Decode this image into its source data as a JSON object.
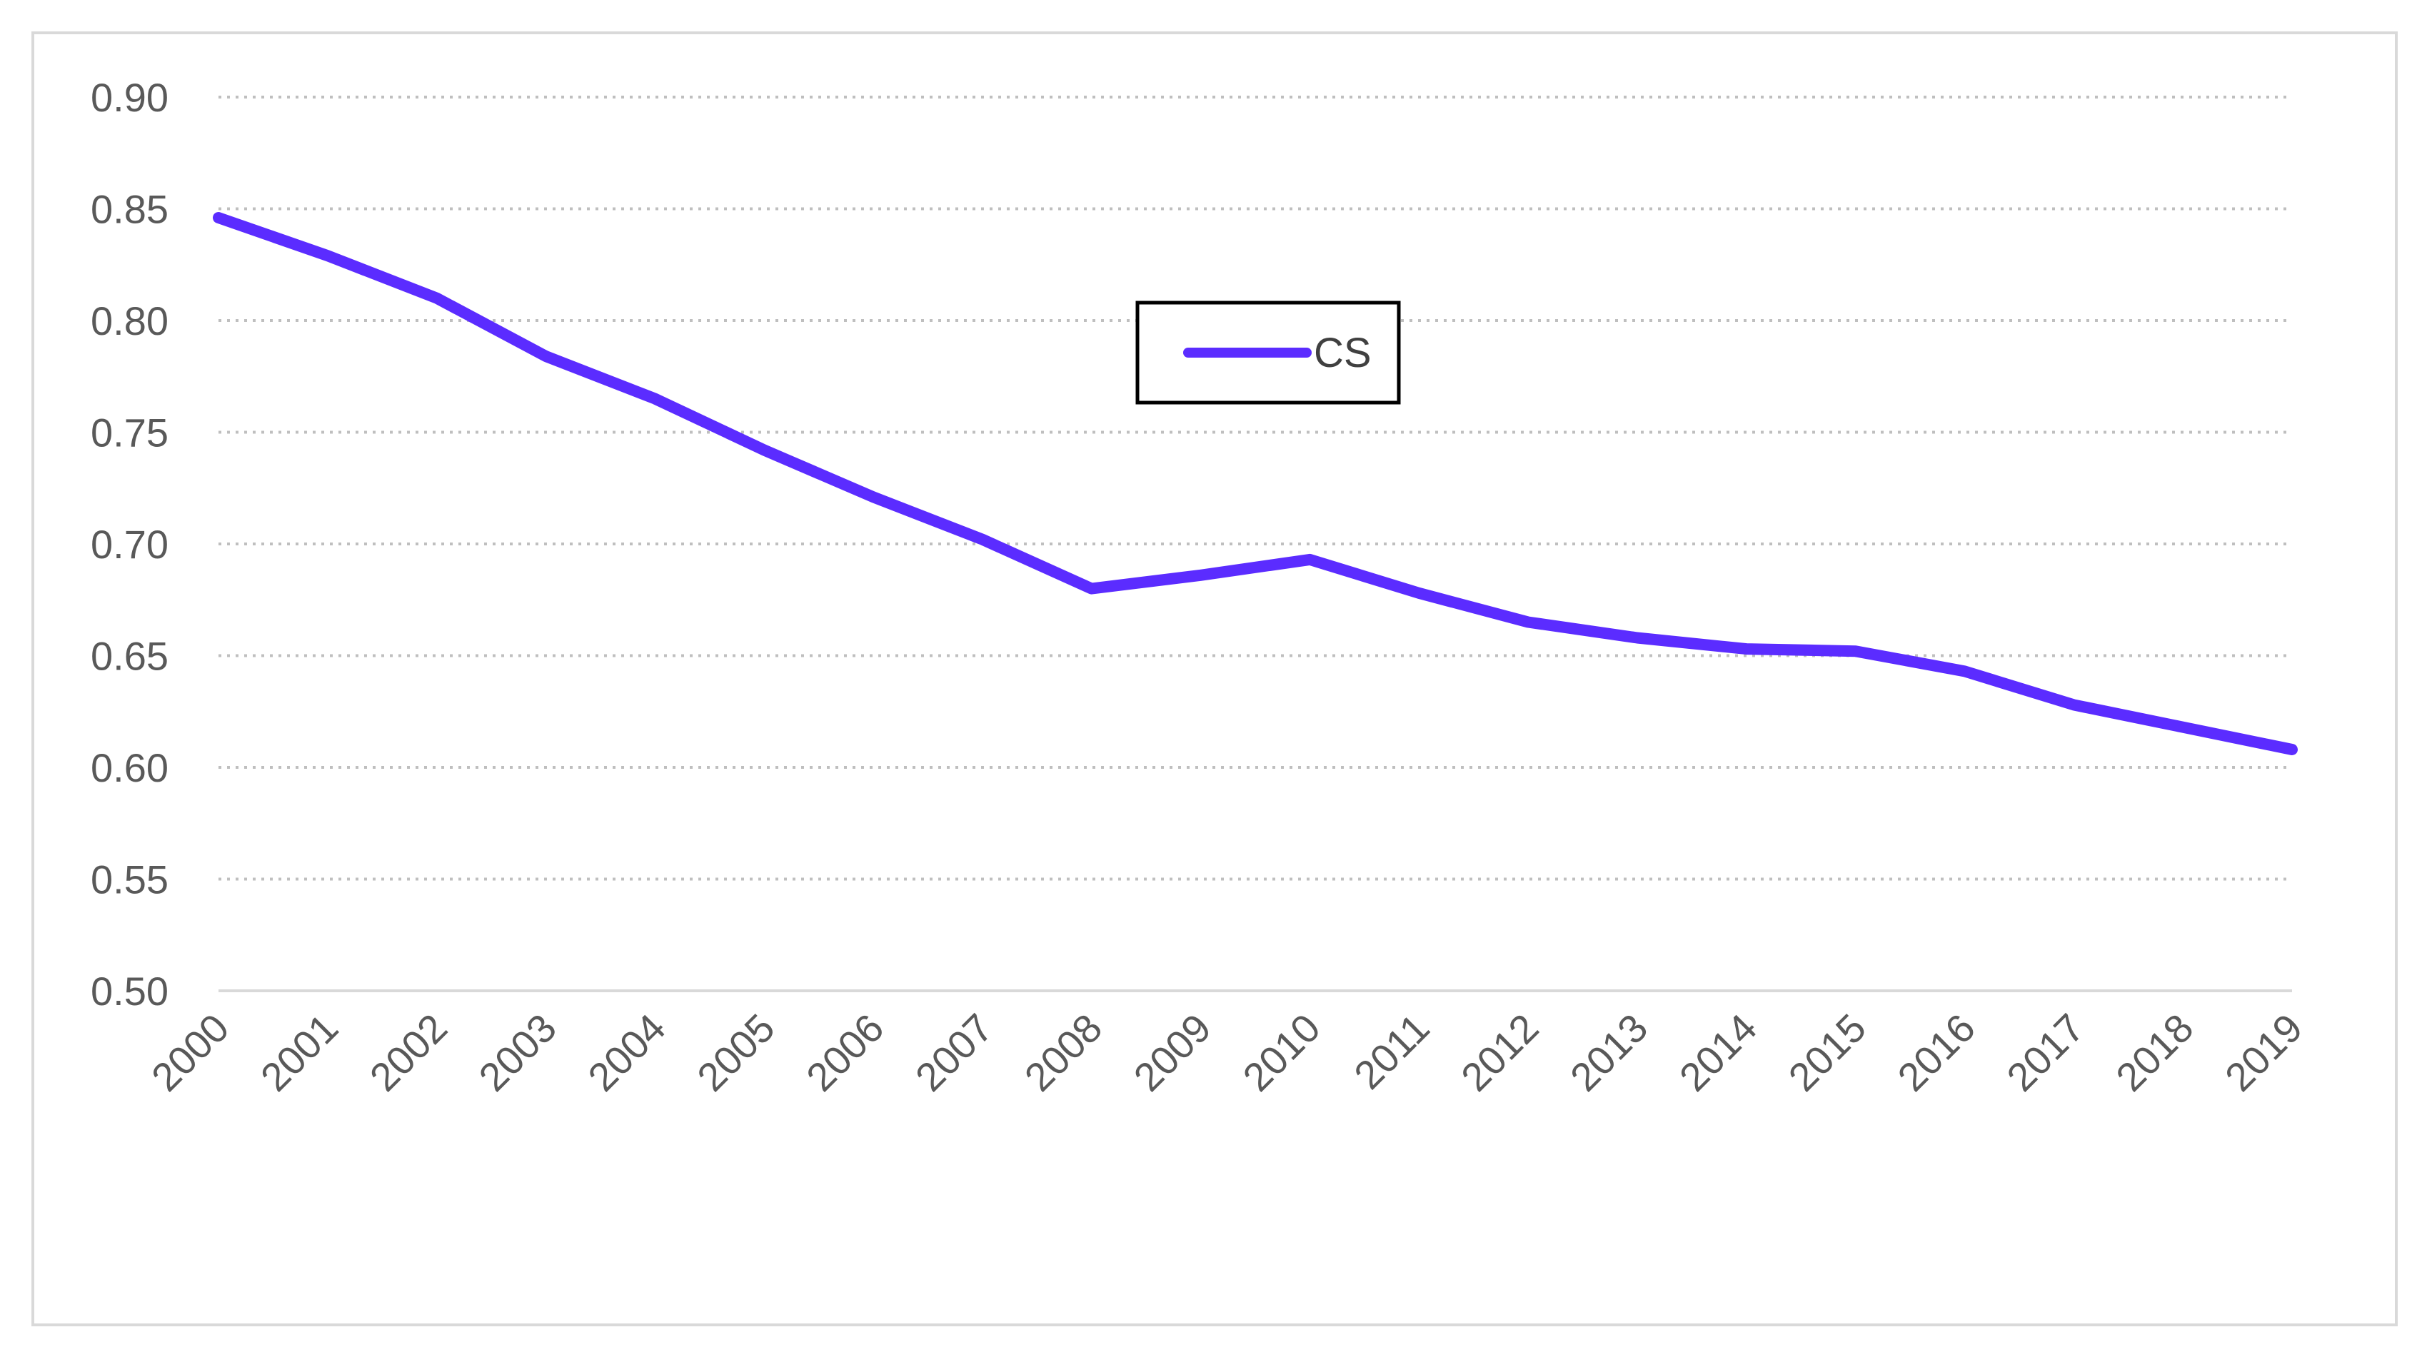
{
  "chart_data": {
    "type": "line",
    "title": "",
    "xlabel": "",
    "ylabel": "",
    "categories": [
      "2000",
      "2001",
      "2002",
      "2003",
      "2004",
      "2005",
      "2006",
      "2007",
      "2008",
      "2009",
      "2010",
      "2011",
      "2012",
      "2013",
      "2014",
      "2015",
      "2016",
      "2017",
      "2018",
      "2019"
    ],
    "series": [
      {
        "name": "CS",
        "color": "#5b2cff",
        "values": [
          0.846,
          0.829,
          0.81,
          0.784,
          0.765,
          0.742,
          0.721,
          0.702,
          0.68,
          0.686,
          0.693,
          0.678,
          0.665,
          0.658,
          0.653,
          0.652,
          0.643,
          0.628,
          0.618,
          0.608
        ]
      }
    ],
    "ylim": [
      0.5,
      0.9
    ],
    "yticks": [
      "0.90",
      "0.85",
      "0.80",
      "0.75",
      "0.70",
      "0.65",
      "0.60",
      "0.55",
      "0.50"
    ],
    "grid": true,
    "legend_position": "top-center"
  }
}
